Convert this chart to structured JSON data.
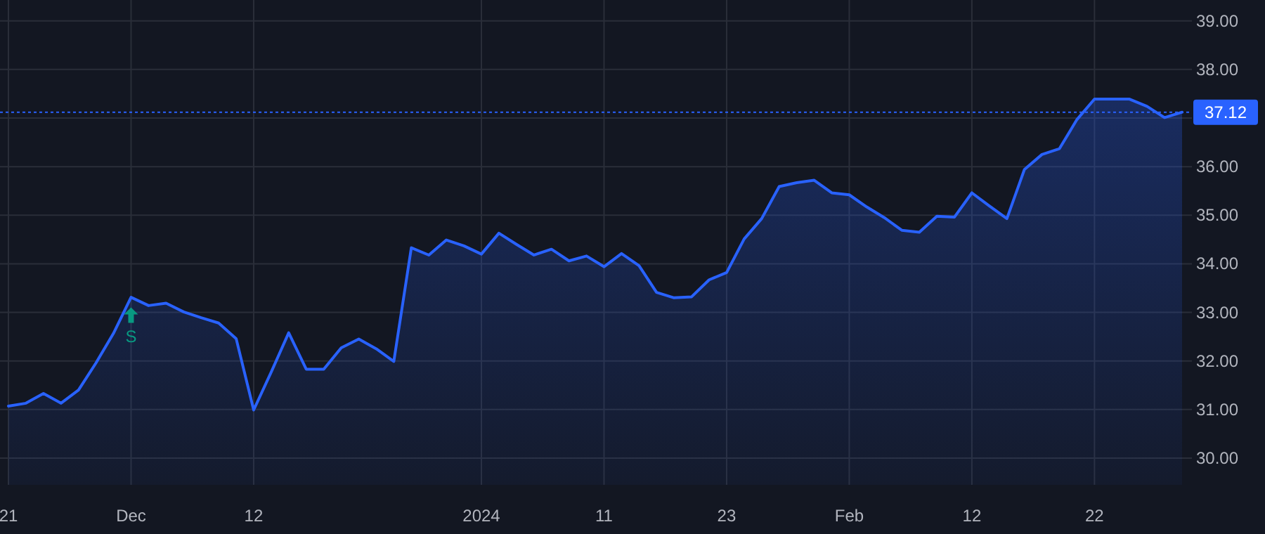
{
  "chart_data": {
    "type": "area",
    "categories": [
      "21",
      null,
      null,
      null,
      null,
      null,
      null,
      "Dec",
      null,
      null,
      null,
      null,
      null,
      null,
      "12",
      null,
      null,
      null,
      null,
      null,
      null,
      null,
      null,
      null,
      null,
      null,
      null,
      "2024",
      null,
      null,
      null,
      null,
      null,
      null,
      "11",
      null,
      null,
      null,
      null,
      null,
      null,
      "23",
      null,
      null,
      null,
      null,
      null,
      null,
      "Feb",
      null,
      null,
      null,
      null,
      null,
      null,
      "12",
      null,
      null,
      null,
      null,
      null,
      null,
      "22",
      null,
      null,
      null,
      null,
      null
    ],
    "series": [
      {
        "color": "#2962ff",
        "values": [
          31.07,
          31.13,
          31.33,
          31.13,
          31.4,
          31.96,
          32.57,
          33.31,
          33.14,
          33.19,
          33.01,
          32.89,
          32.78,
          32.46,
          30.99,
          31.77,
          32.58,
          31.83,
          31.83,
          32.27,
          32.45,
          32.25,
          31.99,
          34.33,
          34.18,
          34.49,
          34.37,
          34.2,
          34.63,
          34.4,
          34.18,
          34.3,
          34.06,
          34.16,
          33.94,
          34.21,
          33.96,
          33.41,
          33.3,
          33.32,
          33.67,
          33.82,
          34.51,
          34.93,
          35.59,
          35.67,
          35.72,
          35.46,
          35.42,
          35.17,
          34.95,
          34.69,
          34.65,
          34.98,
          34.96,
          35.46,
          35.19,
          34.93,
          35.94,
          36.25,
          36.37,
          36.97,
          37.39,
          37.39,
          37.39,
          37.24,
          37.01,
          37.12
        ]
      }
    ],
    "ylim": [
      29.45,
      39.43
    ],
    "yticks": [
      {
        "value": 30,
        "label": "30.00"
      },
      {
        "value": 31,
        "label": "31.00"
      },
      {
        "value": 32,
        "label": "32.00"
      },
      {
        "value": 33,
        "label": "33.00"
      },
      {
        "value": 34,
        "label": "34.00"
      },
      {
        "value": 35,
        "label": "35.00"
      },
      {
        "value": 36,
        "label": "36.00"
      },
      {
        "value": 37,
        "label": null
      },
      {
        "value": 38,
        "label": "38.00"
      },
      {
        "value": 39,
        "label": "39.00"
      }
    ],
    "grid": true,
    "ref_lines": [
      {
        "axis": "y",
        "value": 37.12,
        "label": "37.12",
        "color": "#2962ff",
        "line_style": "dotted"
      }
    ],
    "annotations": [
      {
        "text": "S",
        "x": "Dec",
        "y": 32.9
      }
    ]
  }
}
